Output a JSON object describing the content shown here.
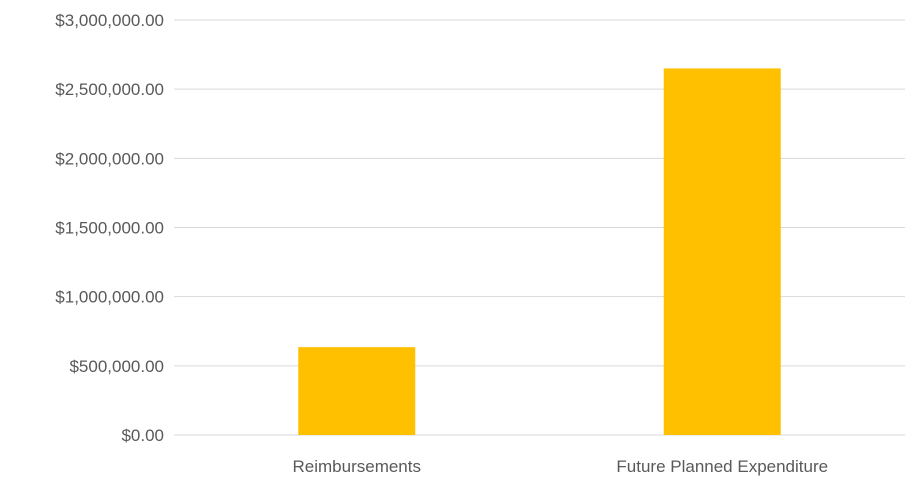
{
  "chart_data": {
    "type": "bar",
    "categories": [
      "Reimbursements",
      "Future Planned Expenditure"
    ],
    "values": [
      635000,
      2650000
    ],
    "y_ticks": [
      "$0.00",
      "$500,000.00",
      "$1,000,000.00",
      "$1,500,000.00",
      "$2,000,000.00",
      "$2,500,000.00",
      "$3,000,000.00"
    ],
    "ylim": [
      0,
      3000000
    ],
    "grid": true,
    "legend": "none",
    "bar_color": "#FFC000",
    "grid_color": "#D9D9D9",
    "text_color": "#595959"
  }
}
